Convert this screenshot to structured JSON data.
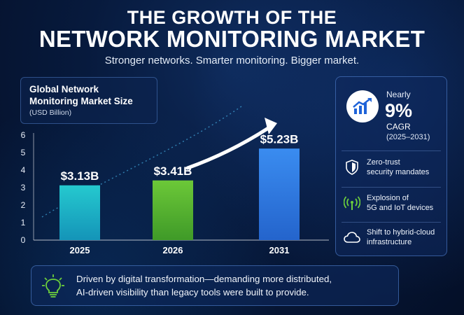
{
  "header": {
    "title_line1": "THE GROWTH OF THE",
    "title_line2": "NETWORK MONITORING MARKET",
    "subtitle": "Stronger networks. Smarter monitoring. Bigger market."
  },
  "chart_data": {
    "type": "bar",
    "title": "Global Network Monitoring Market Size",
    "unit_label": "(USD Billion)",
    "categories": [
      "2025",
      "2026",
      "2031"
    ],
    "values": [
      3.13,
      3.41,
      5.23
    ],
    "data_labels": [
      "$3.13B",
      "$3.41B",
      "$5.23B"
    ],
    "yticks": [
      0,
      1,
      2,
      3,
      4,
      5,
      6
    ],
    "ylim": [
      0,
      6
    ],
    "legend": "none",
    "grid": false,
    "colors": [
      "#1ab8c4",
      "#52b830",
      "#2f7de6"
    ]
  },
  "panel": {
    "nearly": "Nearly",
    "cagr_value": "9%",
    "cagr_label": "CAGR",
    "cagr_range": "(2025–2031)",
    "features": [
      {
        "icon": "shield-icon",
        "line1": "Zero-trust",
        "line2": "security mandates"
      },
      {
        "icon": "signal-tower-icon",
        "line1": "Explosion of",
        "line2": "5G and IoT devices"
      },
      {
        "icon": "cloud-icon",
        "line1": "Shift to hybrid-cloud",
        "line2": "infrastructure"
      }
    ]
  },
  "banner": {
    "icon": "lightbulb-icon",
    "line1": "Driven by digital transformation—demanding more distributed,",
    "line2": "AI-driven visibility than legacy tools were built to provide."
  },
  "colors": {
    "background": "#071a3d",
    "accent_blue": "#2f7de6",
    "accent_green": "#52b830",
    "accent_teal": "#1ab8c4"
  }
}
